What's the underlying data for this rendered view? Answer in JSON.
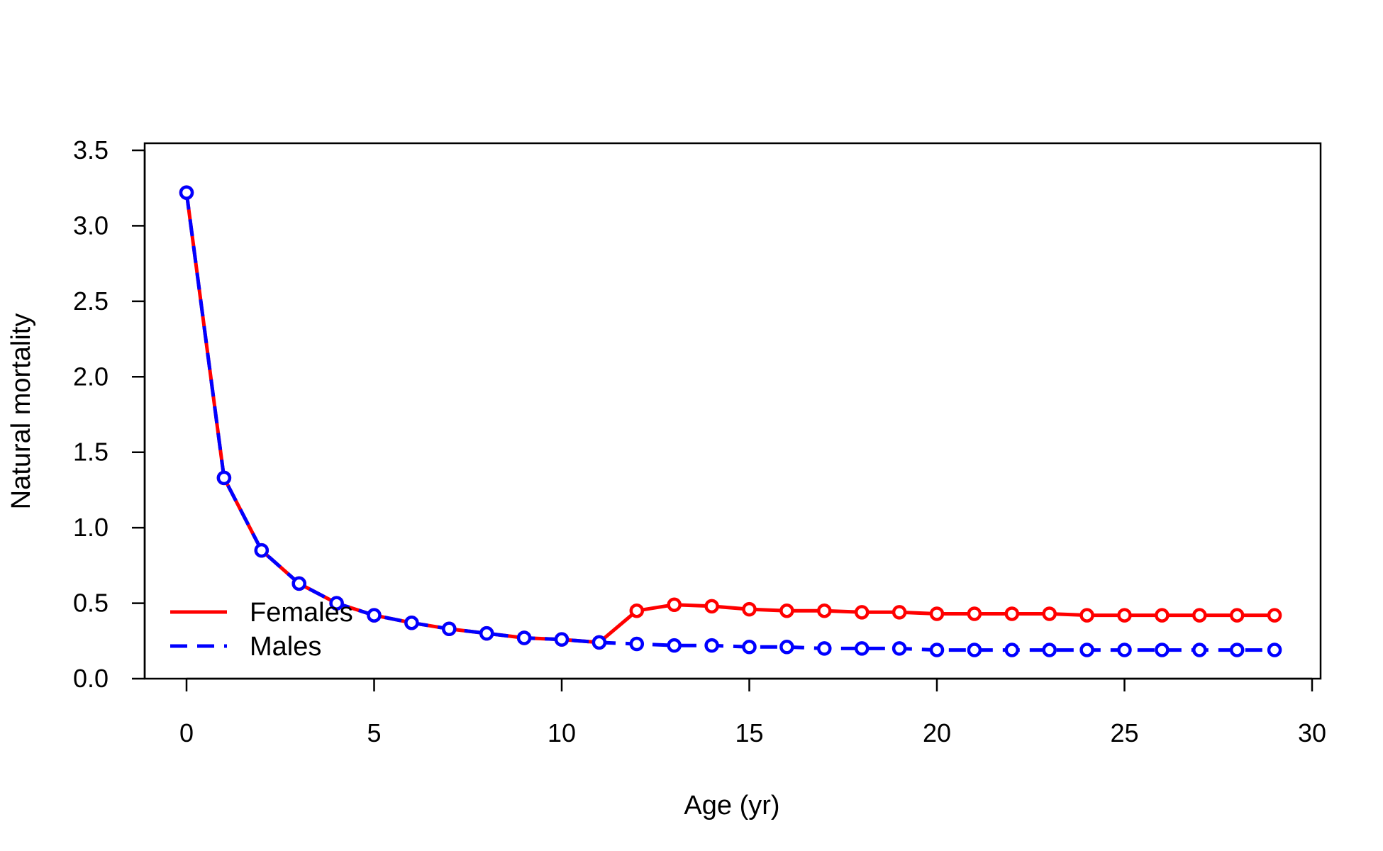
{
  "chart_data": {
    "type": "line",
    "xlabel": "Age (yr)",
    "ylabel": "Natural mortality",
    "xlim": [
      0,
      30
    ],
    "ylim": [
      0,
      3.5
    ],
    "xticks": [
      0,
      5,
      10,
      15,
      20,
      25,
      30
    ],
    "yticks": [
      0,
      0.5,
      1,
      1.5,
      2,
      2.5,
      3,
      3.5
    ],
    "x_tick_labels": [
      "0",
      "5",
      "10",
      "15",
      "20",
      "25",
      "30"
    ],
    "y_tick_labels": [
      "0.0",
      "0.5",
      "1.0",
      "1.5",
      "2.0",
      "2.5",
      "3.0",
      "3.5"
    ],
    "grid": false,
    "legend_position": "bottom-left",
    "x": [
      0,
      1,
      2,
      3,
      4,
      5,
      6,
      7,
      8,
      9,
      10,
      11,
      12,
      13,
      14,
      15,
      16,
      17,
      18,
      19,
      20,
      21,
      22,
      23,
      24,
      25,
      26,
      27,
      28,
      29
    ],
    "series": [
      {
        "name": "Females",
        "color": "#ff0000",
        "line_style": "solid",
        "values": [
          3.22,
          1.33,
          0.85,
          0.63,
          0.5,
          0.42,
          0.37,
          0.33,
          0.3,
          0.27,
          0.26,
          0.24,
          0.45,
          0.49,
          0.48,
          0.46,
          0.45,
          0.45,
          0.44,
          0.44,
          0.43,
          0.43,
          0.43,
          0.43,
          0.42,
          0.42,
          0.42,
          0.42,
          0.42,
          0.42
        ]
      },
      {
        "name": "Males",
        "color": "#0000ff",
        "line_style": "dashed",
        "values": [
          3.22,
          1.33,
          0.85,
          0.63,
          0.5,
          0.42,
          0.37,
          0.33,
          0.3,
          0.27,
          0.26,
          0.24,
          0.23,
          0.22,
          0.22,
          0.21,
          0.21,
          0.2,
          0.2,
          0.2,
          0.19,
          0.19,
          0.19,
          0.19,
          0.19,
          0.19,
          0.19,
          0.19,
          0.19,
          0.19
        ]
      }
    ]
  }
}
